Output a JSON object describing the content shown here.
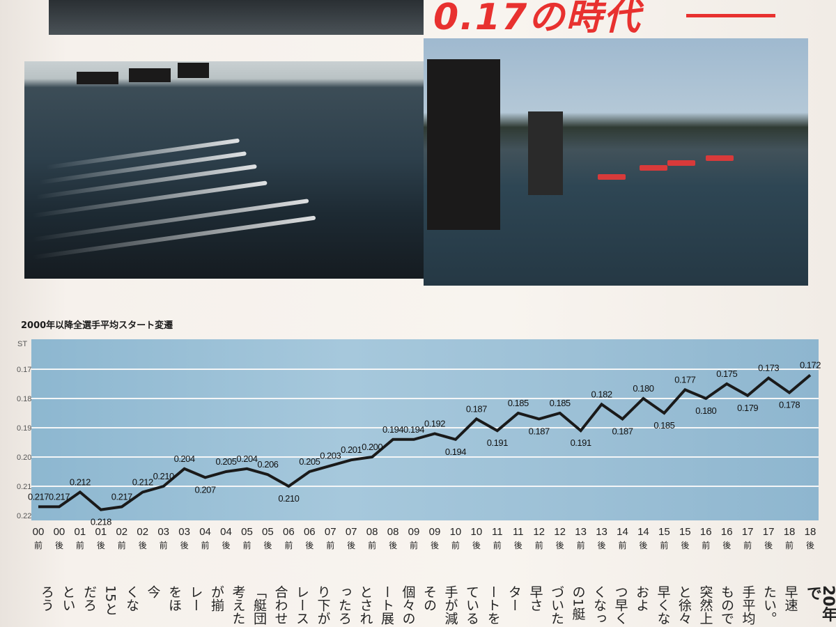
{
  "headline": "0.17の時代",
  "chart_data": {
    "type": "line",
    "title": "2000年以降全選手平均スタート変遷",
    "ylabel": "ST",
    "ylim": [
      0.22,
      0.17
    ],
    "y_inverted": true,
    "yticks": [
      "0.17",
      "0.18",
      "0.19",
      "0.20",
      "0.21",
      "0.22"
    ],
    "grid": true,
    "background_color": "#9cc0d6",
    "line_color": "#1a1a1a",
    "categories": [
      {
        "year": "00",
        "half": "前"
      },
      {
        "year": "00",
        "half": "後"
      },
      {
        "year": "01",
        "half": "前"
      },
      {
        "year": "01",
        "half": "後"
      },
      {
        "year": "02",
        "half": "前"
      },
      {
        "year": "02",
        "half": "後"
      },
      {
        "year": "03",
        "half": "前"
      },
      {
        "year": "03",
        "half": "後"
      },
      {
        "year": "04",
        "half": "前"
      },
      {
        "year": "04",
        "half": "後"
      },
      {
        "year": "05",
        "half": "前"
      },
      {
        "year": "05",
        "half": "後"
      },
      {
        "year": "06",
        "half": "前"
      },
      {
        "year": "06",
        "half": "後"
      },
      {
        "year": "07",
        "half": "前"
      },
      {
        "year": "07",
        "half": "後"
      },
      {
        "year": "08",
        "half": "前"
      },
      {
        "year": "08",
        "half": "後"
      },
      {
        "year": "09",
        "half": "前"
      },
      {
        "year": "09",
        "half": "後"
      },
      {
        "year": "10",
        "half": "前"
      },
      {
        "year": "10",
        "half": "後"
      },
      {
        "year": "11",
        "half": "前"
      },
      {
        "year": "11",
        "half": "後"
      },
      {
        "year": "12",
        "half": "前"
      },
      {
        "year": "12",
        "half": "後"
      },
      {
        "year": "13",
        "half": "前"
      },
      {
        "year": "13",
        "half": "後"
      },
      {
        "year": "14",
        "half": "前"
      },
      {
        "year": "14",
        "half": "後"
      },
      {
        "year": "15",
        "half": "前"
      },
      {
        "year": "15",
        "half": "後"
      },
      {
        "year": "16",
        "half": "前"
      },
      {
        "year": "16",
        "half": "後"
      },
      {
        "year": "17",
        "half": "前"
      },
      {
        "year": "17",
        "half": "後"
      },
      {
        "year": "18",
        "half": "前"
      },
      {
        "year": "18",
        "half": "後"
      }
    ],
    "values": [
      0.217,
      0.217,
      0.212,
      0.218,
      0.217,
      0.212,
      0.21,
      0.204,
      0.207,
      0.205,
      0.204,
      0.206,
      0.21,
      0.205,
      0.203,
      0.201,
      0.2,
      0.194,
      0.194,
      0.192,
      0.194,
      0.187,
      0.191,
      0.185,
      0.187,
      0.185,
      0.191,
      0.182,
      0.187,
      0.18,
      0.185,
      0.177,
      0.18,
      0.175,
      0.179,
      0.173,
      0.178,
      0.172
    ]
  },
  "body_columns": [
    "20年で",
    "早速",
    "たい。",
    "手平均",
    "もので",
    "突然上",
    "と徐々",
    "早くな",
    "およ",
    "つ早く",
    "くなっ",
    "の1艇",
    "づいた",
    "早さ",
    "ター",
    "ートを",
    "ている",
    "手が減",
    "その",
    "個々の",
    "ート展",
    "とされ",
    "ったろ",
    "り下が",
    "レース",
    "合わせ",
    "「艇団",
    "考えた",
    "が揃",
    "レー",
    "をほ",
    "今",
    "くな",
    "15と",
    "だろ",
    "とい",
    "ろう"
  ]
}
